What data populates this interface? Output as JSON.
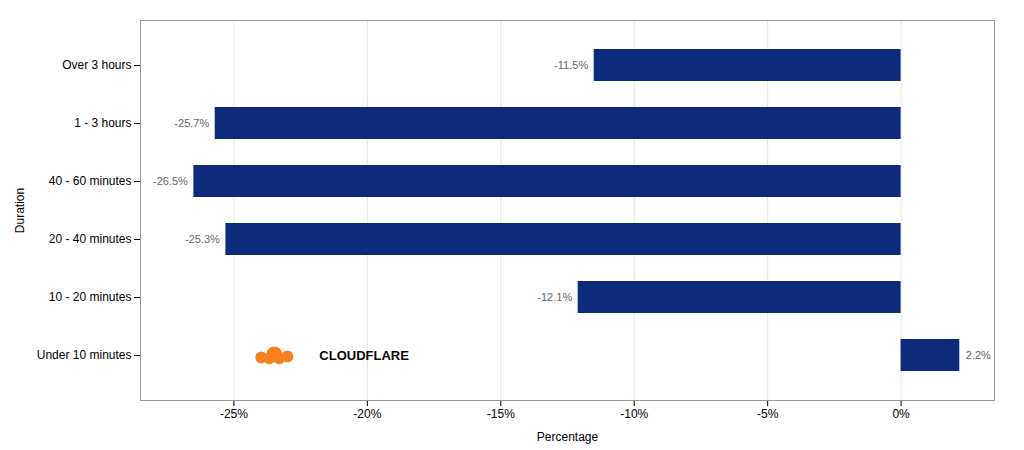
{
  "chart_data": {
    "type": "bar",
    "orientation": "horizontal",
    "categories": [
      "Under 10 minutes",
      "10 - 20 minutes",
      "20 - 40 minutes",
      "40 - 60 minutes",
      "1 - 3 hours",
      "Over 3 hours"
    ],
    "values": [
      2.2,
      -12.1,
      -25.3,
      -26.5,
      -25.7,
      -11.5
    ],
    "value_labels": [
      "2.2%",
      "-12.1%",
      "-25.3%",
      "-26.5%",
      "-25.7%",
      "-11.5%"
    ],
    "data_labels": true,
    "color": "#0d2b7a",
    "xlabel": "Percentage",
    "ylabel": "Duration",
    "xlim": [
      -28.5,
      3.5
    ],
    "xticks": [
      {
        "value": -25,
        "label": "-25%"
      },
      {
        "value": -20,
        "label": "-20%"
      },
      {
        "value": -15,
        "label": "-15%"
      },
      {
        "value": -10,
        "label": "-10%"
      },
      {
        "value": -5,
        "label": "-5%"
      },
      {
        "value": 0,
        "label": "0%"
      }
    ],
    "grid": true,
    "annotations": [
      {
        "text": "CLOUDFLARE",
        "x": -21.8,
        "y": "Under 10 minutes"
      }
    ]
  }
}
